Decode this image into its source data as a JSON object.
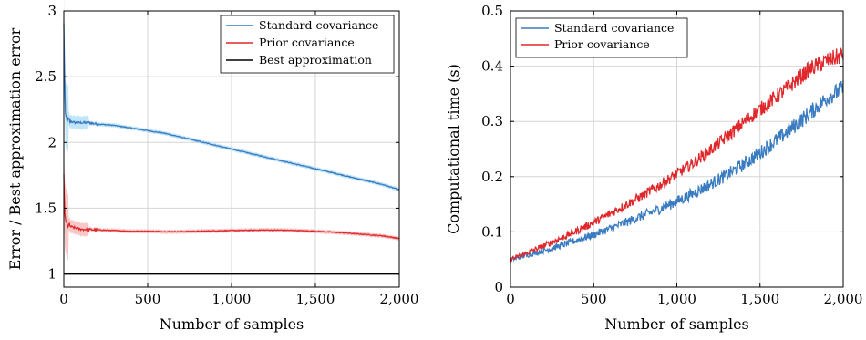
{
  "chart_data": [
    {
      "type": "line",
      "xlabel": "Number of samples",
      "ylabel": "Error / Best approximation error",
      "xlim": [
        0,
        2000
      ],
      "ylim": [
        0.9,
        3.0
      ],
      "xticks": [
        0,
        500,
        1000,
        1500,
        2000
      ],
      "xtick_labels": [
        "0",
        "500",
        "1,000",
        "1,500",
        "2,000"
      ],
      "yticks": [
        1,
        1.5,
        2,
        2.5,
        3
      ],
      "ytick_labels": [
        "1",
        "1.5",
        "2",
        "2.5",
        "3"
      ],
      "grid": true,
      "legend_position": "top-right",
      "series": [
        {
          "name": "Standard covariance",
          "color": "#3a7cc1",
          "band_color": "#8fd0f2",
          "x": [
            0,
            5,
            10,
            20,
            40,
            70,
            100,
            150,
            200,
            300,
            400,
            500,
            600,
            700,
            800,
            900,
            1000,
            1100,
            1200,
            1300,
            1400,
            1500,
            1600,
            1700,
            1800,
            1900,
            2000
          ],
          "y": [
            2.9,
            2.5,
            2.2,
            2.17,
            2.16,
            2.15,
            2.15,
            2.15,
            2.14,
            2.13,
            2.11,
            2.09,
            2.07,
            2.04,
            2.01,
            1.98,
            1.95,
            1.92,
            1.89,
            1.86,
            1.83,
            1.8,
            1.77,
            1.74,
            1.71,
            1.68,
            1.64
          ]
        },
        {
          "name": "Prior covariance",
          "color": "#e0282c",
          "band_color": "#f29a9a",
          "x": [
            0,
            5,
            10,
            20,
            40,
            70,
            100,
            200,
            300,
            400,
            500,
            600,
            700,
            800,
            900,
            1000,
            1100,
            1200,
            1300,
            1400,
            1500,
            1600,
            1700,
            1800,
            1900,
            2000
          ],
          "y": [
            1.75,
            1.5,
            1.4,
            1.37,
            1.36,
            1.35,
            1.34,
            1.335,
            1.33,
            1.325,
            1.325,
            1.322,
            1.322,
            1.325,
            1.328,
            1.33,
            1.332,
            1.334,
            1.333,
            1.33,
            1.325,
            1.318,
            1.31,
            1.3,
            1.29,
            1.27
          ]
        },
        {
          "name": "Best approximation",
          "color": "#000000",
          "x": [
            0,
            2000
          ],
          "y": [
            1,
            1
          ]
        }
      ]
    },
    {
      "type": "line",
      "xlabel": "Number of samples",
      "ylabel": "Computational time (s)",
      "xlim": [
        0,
        2000
      ],
      "ylim": [
        0,
        0.5
      ],
      "xticks": [
        0,
        500,
        1000,
        1500,
        2000
      ],
      "xtick_labels": [
        "0",
        "500",
        "1,000",
        "1,500",
        "2,000"
      ],
      "yticks": [
        0,
        0.1,
        0.2,
        0.3,
        0.4,
        0.5
      ],
      "ytick_labels": [
        "0",
        "0.1",
        "0.2",
        "0.3",
        "0.4",
        "0.5"
      ],
      "grid": true,
      "legend_position": "top-left",
      "series": [
        {
          "name": "Standard covariance",
          "color": "#3a7cc1",
          "x": [
            0,
            100,
            200,
            300,
            400,
            500,
            600,
            700,
            800,
            900,
            1000,
            1100,
            1200,
            1300,
            1400,
            1500,
            1600,
            1700,
            1800,
            1900,
            2000
          ],
          "y": [
            0.05,
            0.058,
            0.066,
            0.075,
            0.085,
            0.095,
            0.106,
            0.118,
            0.13,
            0.142,
            0.155,
            0.17,
            0.186,
            0.203,
            0.222,
            0.243,
            0.266,
            0.29,
            0.315,
            0.342,
            0.36
          ]
        },
        {
          "name": "Prior covariance",
          "color": "#e0282c",
          "x": [
            0,
            100,
            200,
            300,
            400,
            500,
            600,
            700,
            800,
            900,
            1000,
            1100,
            1200,
            1300,
            1400,
            1500,
            1600,
            1700,
            1800,
            1900,
            2000
          ],
          "y": [
            0.05,
            0.062,
            0.075,
            0.088,
            0.102,
            0.117,
            0.133,
            0.15,
            0.167,
            0.185,
            0.205,
            0.225,
            0.248,
            0.272,
            0.298,
            0.322,
            0.345,
            0.37,
            0.395,
            0.41,
            0.42
          ]
        }
      ]
    }
  ]
}
